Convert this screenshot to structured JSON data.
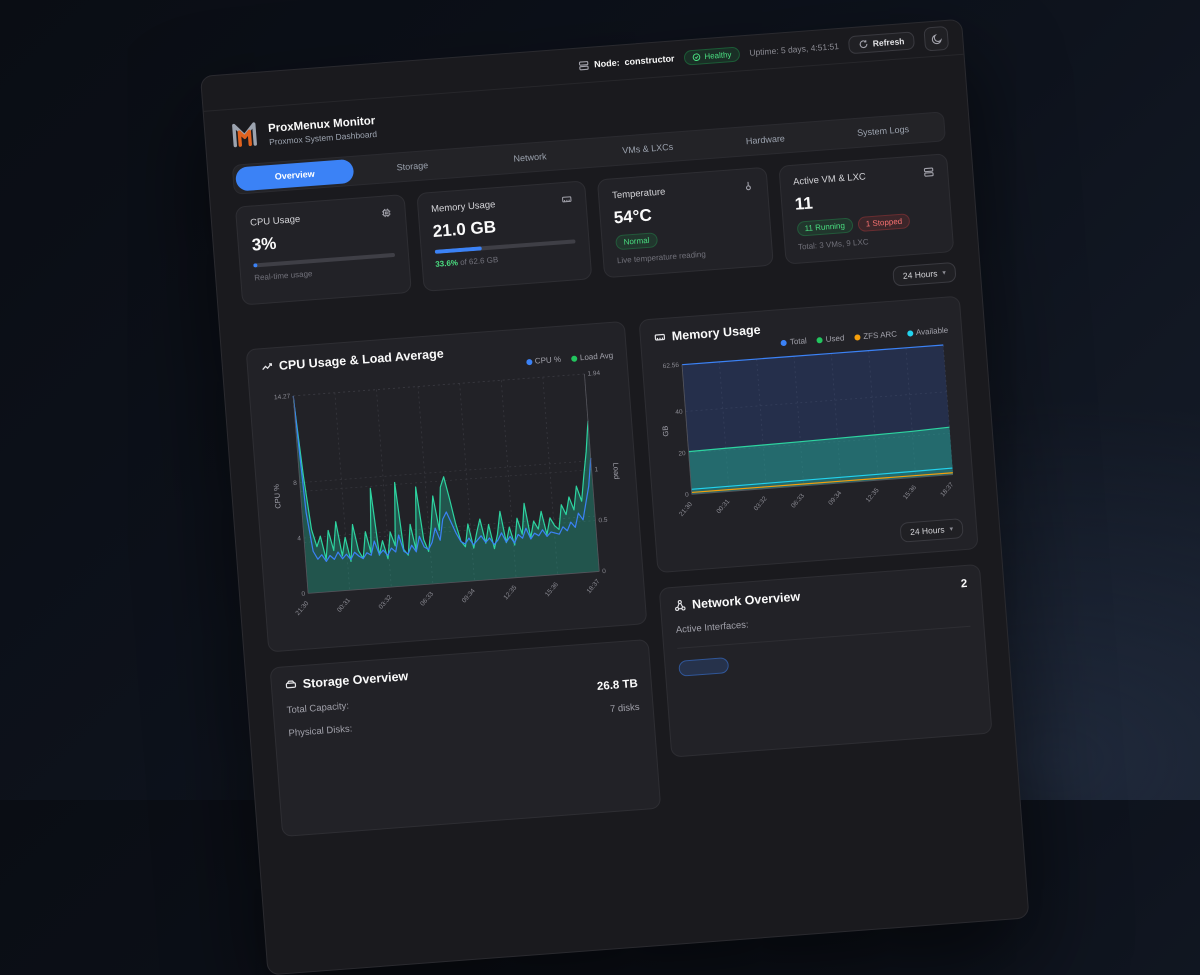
{
  "topbar": {
    "node_label": "Node:",
    "node_value": "constructor",
    "health": "Healthy",
    "uptime": "Uptime: 5 days, 4:51:51",
    "refresh": "Refresh"
  },
  "header": {
    "title": "ProxMenux Monitor",
    "subtitle": "Proxmox System Dashboard"
  },
  "tabs": [
    {
      "label": "Overview",
      "active": true
    },
    {
      "label": "Storage",
      "active": false
    },
    {
      "label": "Network",
      "active": false
    },
    {
      "label": "VMs & LXCs",
      "active": false
    },
    {
      "label": "Hardware",
      "active": false
    },
    {
      "label": "System Logs",
      "active": false
    }
  ],
  "time_range": {
    "label": "24 Hours"
  },
  "stats": {
    "cpu": {
      "title": "CPU Usage",
      "value": "3%",
      "percent": 3,
      "caption": "Real-time usage"
    },
    "memory": {
      "title": "Memory Usage",
      "value": "21.0 GB",
      "percent": 33.6,
      "caption_highlight": "33.6%",
      "caption_rest": " of 62.6 GB"
    },
    "temperature": {
      "title": "Temperature",
      "value": "54°C",
      "badge": "Normal",
      "caption": "Live temperature reading"
    },
    "vms": {
      "title": "Active VM & LXC",
      "value": "11",
      "badge_running": "11 Running",
      "badge_stopped": "1 Stopped",
      "caption": "Total: 3 VMs, 9 LXC"
    }
  },
  "storage": {
    "title": "Storage Overview",
    "rows": [
      {
        "label": "Total Capacity:",
        "value": "26.8 TB"
      },
      {
        "label": "Physical Disks:",
        "value": "7 disks"
      }
    ]
  },
  "network": {
    "title": "Network Overview",
    "count": "2",
    "row_label": "Active Interfaces:",
    "badge": ""
  },
  "icons": {
    "chevron_down": "▾"
  },
  "colors": {
    "accent_blue": "#3b82f6",
    "green": "#22c55e",
    "teal": "#2dd4a0",
    "orange": "#f59e0b",
    "cyan": "#22d3ee",
    "red": "#f87171"
  },
  "chart_data": [
    {
      "type": "line",
      "title": "CPU Usage & Load Average",
      "x_labels": [
        "21:30",
        "00:31",
        "03:32",
        "06:33",
        "09:34",
        "12:35",
        "15:36",
        "18:37"
      ],
      "left_axis": {
        "label": "CPU %",
        "max": 14.27,
        "ticks": [
          0,
          4,
          8,
          14.27
        ]
      },
      "right_axis": {
        "label": "Load",
        "max": 1.94,
        "ticks": [
          0,
          0.5,
          1,
          1.94
        ]
      },
      "legend": [
        {
          "label": "CPU %",
          "color": "#3b82f6"
        },
        {
          "label": "Load Avg",
          "color": "#22c55e"
        }
      ],
      "series": [
        {
          "name": "Load Avg",
          "axis": "right",
          "color": "#2dd4a0",
          "fill": "rgba(35,180,150,0.35)",
          "values": [
            1.9,
            1.15,
            0.62,
            0.45,
            0.55,
            0.32,
            0.6,
            0.4,
            0.68,
            0.34,
            0.52,
            0.28,
            0.64,
            0.38,
            0.3,
            0.56,
            0.35,
            0.98,
            0.32,
            0.46,
            0.28,
            0.54,
            0.4,
            1.02,
            0.36,
            0.3,
            0.6,
            0.34,
            0.96,
            0.44,
            0.32,
            0.55,
            0.86,
            0.52,
            0.94,
            1.04,
            0.82,
            0.58,
            0.4,
            0.34,
            0.56,
            0.32,
            0.47,
            0.6,
            0.36,
            0.54,
            0.3,
            0.44,
            0.66,
            0.35,
            0.5,
            0.32,
            0.58,
            0.42,
            0.72,
            0.38,
            0.54,
            0.46,
            0.63,
            0.4,
            0.56,
            0.48,
            0.44,
            0.68,
            0.58,
            0.75,
            0.62,
            0.85,
            0.7,
            0.95,
            1.18,
            1.48
          ]
        },
        {
          "name": "CPU %",
          "axis": "left",
          "color": "#3b82f6",
          "values": [
            14.27,
            5.8,
            3.0,
            2.4,
            2.7,
            2.2,
            2.6,
            2.3,
            2.8,
            2.3,
            2.6,
            2.2,
            2.7,
            2.4,
            2.2,
            2.6,
            2.4,
            3.4,
            2.4,
            2.7,
            2.3,
            2.8,
            2.5,
            3.7,
            2.5,
            2.3,
            2.9,
            2.4,
            3.5,
            2.7,
            2.5,
            3.0,
            4.0,
            3.1,
            4.6,
            5.1,
            4.3,
            3.5,
            2.9,
            2.7,
            3.1,
            2.6,
            2.9,
            3.2,
            2.7,
            3.0,
            2.5,
            2.8,
            3.3,
            2.6,
            3.0,
            2.5,
            3.1,
            2.8,
            3.5,
            2.7,
            3.1,
            2.9,
            3.3,
            2.8,
            3.1,
            3.0,
            2.9,
            3.4,
            3.1,
            3.7,
            3.3,
            4.3,
            3.8,
            5.0,
            6.2,
            8.2
          ]
        }
      ]
    },
    {
      "type": "area",
      "title": "Memory Usage",
      "x_labels": [
        "21:30",
        "00:31",
        "03:32",
        "06:33",
        "09:34",
        "12:35",
        "15:36",
        "18:37"
      ],
      "left_axis": {
        "label": "GB",
        "max": 62.56,
        "ticks": [
          0,
          20,
          40,
          62.56
        ]
      },
      "legend": [
        {
          "label": "Total",
          "color": "#3b82f6"
        },
        {
          "label": "Used",
          "color": "#22c55e"
        },
        {
          "label": "ZFS ARC",
          "color": "#f59e0b"
        },
        {
          "label": "Available",
          "color": "#22d3ee"
        }
      ],
      "series": [
        {
          "name": "Total",
          "axis": "left",
          "color": "#3b82f6",
          "fill": "rgba(45,80,160,0.30)",
          "values": [
            62.56,
            62.56,
            62.56,
            62.56,
            62.56,
            62.56,
            62.56,
            62.56
          ]
        },
        {
          "name": "Used",
          "axis": "left",
          "color": "#2dd4a0",
          "fill": "rgba(35,180,150,0.45)",
          "values": [
            20.6,
            20.9,
            21.1,
            21.3,
            21.6,
            21.9,
            22.3,
            22.9
          ]
        },
        {
          "name": "ZFS ARC",
          "axis": "left",
          "color": "#f59e0b",
          "values": [
            0.9,
            0.9,
            0.9,
            0.9,
            0.9,
            0.9,
            0.9,
            0.9
          ]
        },
        {
          "name": "Available",
          "axis": "left",
          "color": "#22d3ee",
          "values": [
            2.4,
            2.5,
            2.6,
            2.7,
            2.8,
            2.9,
            3.0,
            3.2
          ]
        }
      ]
    }
  ]
}
